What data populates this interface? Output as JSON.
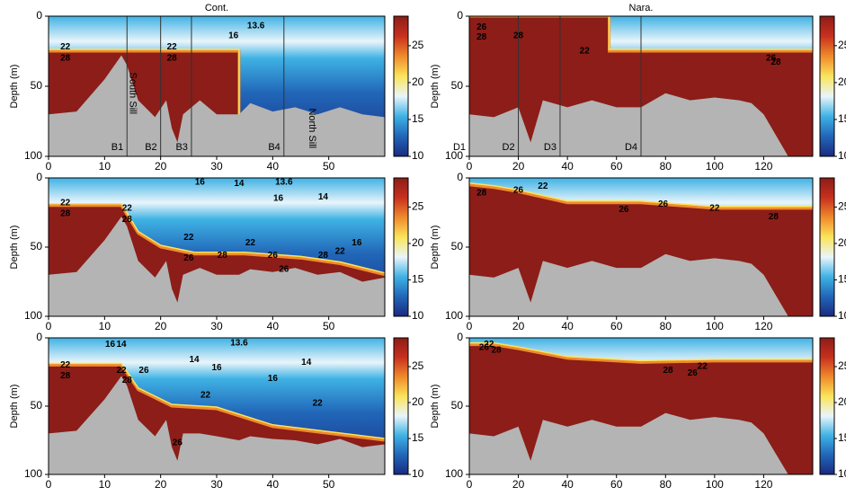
{
  "chart_data": [
    {
      "type": "heatmap",
      "title": "Cont.",
      "ylabel": "Depth (m)",
      "xlim": [
        0,
        60
      ],
      "xticks": [
        0,
        10,
        20,
        30,
        40,
        50
      ],
      "ylim": [
        0,
        100
      ],
      "y_inverted": true,
      "yticks": [
        0,
        50,
        100
      ],
      "colorbar": {
        "lim": [
          10,
          29
        ],
        "ticks": [
          10,
          15,
          20,
          25
        ]
      },
      "colormap": [
        "#1a2a80",
        "#2166b8",
        "#3fb2e4",
        "#e9f5fb",
        "#fbe45a",
        "#f08a2c",
        "#c8301e",
        "#8c1d18"
      ],
      "isotherm_x": [
        0,
        34,
        34,
        60
      ],
      "isotherm_depth": [
        25,
        25,
        100,
        100
      ],
      "seafloor_x": [
        0,
        5,
        10,
        13,
        14,
        16,
        19,
        21,
        22,
        23,
        24,
        27,
        30,
        34,
        36,
        40,
        44,
        48,
        52,
        56,
        60
      ],
      "seafloor_depth": [
        70,
        68,
        45,
        28,
        35,
        60,
        72,
        60,
        80,
        90,
        70,
        60,
        70,
        70,
        62,
        68,
        65,
        70,
        65,
        70,
        72
      ],
      "stations": [
        {
          "label": "B1",
          "x": 14
        },
        {
          "label": "B2",
          "x": 20
        },
        {
          "label": "B3",
          "x": 25.5
        },
        {
          "label": "B4",
          "x": 42
        }
      ],
      "features": [
        {
          "text": "South Sill",
          "x": 15,
          "y": 55
        },
        {
          "text": "North Sill",
          "x": 47,
          "y": 80
        }
      ],
      "contour_labels": [
        {
          "text": "22",
          "x": 3,
          "y": 22
        },
        {
          "text": "28",
          "x": 3,
          "y": 30
        },
        {
          "text": "22",
          "x": 22,
          "y": 22
        },
        {
          "text": "28",
          "x": 22,
          "y": 30
        },
        {
          "text": "16",
          "x": 33,
          "y": 14
        },
        {
          "text": "13.6",
          "x": 37,
          "y": 7
        }
      ]
    },
    {
      "type": "heatmap",
      "title": "Nara.",
      "ylabel": "Depth (m)",
      "xlim": [
        0,
        140
      ],
      "xticks": [
        0,
        20,
        40,
        60,
        80,
        100,
        120
      ],
      "ylim": [
        0,
        100
      ],
      "y_inverted": true,
      "yticks": [
        0,
        50,
        100
      ],
      "colorbar": {
        "lim": [
          10,
          29
        ],
        "ticks": [
          10,
          15,
          20,
          25
        ]
      },
      "colormap": [
        "#1a2a80",
        "#2166b8",
        "#3fb2e4",
        "#e9f5fb",
        "#fbe45a",
        "#f08a2c",
        "#c8301e",
        "#8c1d18"
      ],
      "isotherm_x": [
        0,
        57,
        57,
        140
      ],
      "isotherm_depth": [
        0,
        0,
        25,
        25
      ],
      "seafloor_x": [
        0,
        10,
        20,
        25,
        30,
        40,
        50,
        60,
        70,
        80,
        90,
        100,
        110,
        115,
        120,
        125,
        130,
        140
      ],
      "seafloor_depth": [
        70,
        72,
        65,
        90,
        60,
        65,
        60,
        65,
        65,
        55,
        60,
        58,
        60,
        62,
        70,
        85,
        100,
        100
      ],
      "stations": [
        {
          "label": "D1",
          "x": 0
        },
        {
          "label": "D2",
          "x": 20
        },
        {
          "label": "D3",
          "x": 37
        },
        {
          "label": "D4",
          "x": 70
        }
      ],
      "features": [],
      "contour_labels": [
        {
          "text": "26",
          "x": 5,
          "y": 8
        },
        {
          "text": "28",
          "x": 5,
          "y": 15
        },
        {
          "text": "28",
          "x": 20,
          "y": 14
        },
        {
          "text": "22",
          "x": 47,
          "y": 25
        },
        {
          "text": "26",
          "x": 123,
          "y": 30
        },
        {
          "text": "28",
          "x": 125,
          "y": 33
        }
      ]
    },
    {
      "type": "heatmap",
      "ylabel": "Depth (m)",
      "xlim": [
        0,
        60
      ],
      "xticks": [
        0,
        10,
        20,
        30,
        40,
        50
      ],
      "ylim": [
        0,
        100
      ],
      "y_inverted": true,
      "yticks": [
        0,
        50,
        100
      ],
      "colorbar": {
        "lim": [
          10,
          29
        ],
        "ticks": [
          10,
          15,
          20,
          25
        ]
      },
      "colormap": [
        "#1a2a80",
        "#2166b8",
        "#3fb2e4",
        "#e9f5fb",
        "#fbe45a",
        "#f08a2c",
        "#c8301e",
        "#8c1d18"
      ],
      "isotherm_x": [
        0,
        13,
        16,
        20,
        26,
        35,
        45,
        52,
        60
      ],
      "isotherm_depth": [
        20,
        20,
        40,
        50,
        55,
        55,
        58,
        62,
        70
      ],
      "seafloor_x": [
        0,
        5,
        10,
        13,
        14,
        16,
        19,
        21,
        22,
        23,
        24,
        27,
        30,
        34,
        36,
        40,
        44,
        48,
        52,
        56,
        60
      ],
      "seafloor_depth": [
        70,
        68,
        45,
        28,
        35,
        60,
        72,
        60,
        80,
        90,
        70,
        65,
        70,
        70,
        66,
        68,
        65,
        70,
        68,
        75,
        72
      ],
      "stations": [],
      "features": [],
      "contour_labels": [
        {
          "text": "22",
          "x": 3,
          "y": 18
        },
        {
          "text": "28",
          "x": 3,
          "y": 26
        },
        {
          "text": "22",
          "x": 14,
          "y": 22
        },
        {
          "text": "28",
          "x": 14,
          "y": 30
        },
        {
          "text": "16",
          "x": 27,
          "y": 3
        },
        {
          "text": "14",
          "x": 34,
          "y": 4
        },
        {
          "text": "13.6",
          "x": 42,
          "y": 3
        },
        {
          "text": "16",
          "x": 41,
          "y": 15
        },
        {
          "text": "14",
          "x": 49,
          "y": 14
        },
        {
          "text": "22",
          "x": 25,
          "y": 43
        },
        {
          "text": "22",
          "x": 36,
          "y": 47
        },
        {
          "text": "26",
          "x": 25,
          "y": 58
        },
        {
          "text": "28",
          "x": 31,
          "y": 56
        },
        {
          "text": "26",
          "x": 40,
          "y": 56
        },
        {
          "text": "28",
          "x": 49,
          "y": 56
        },
        {
          "text": "22",
          "x": 52,
          "y": 53
        },
        {
          "text": "16",
          "x": 55,
          "y": 47
        },
        {
          "text": "26",
          "x": 42,
          "y": 66
        }
      ]
    },
    {
      "type": "heatmap",
      "ylabel": "Depth (m)",
      "xlim": [
        0,
        140
      ],
      "xticks": [
        0,
        20,
        40,
        60,
        80,
        100,
        120
      ],
      "ylim": [
        0,
        100
      ],
      "y_inverted": true,
      "yticks": [
        0,
        50,
        100
      ],
      "colorbar": {
        "lim": [
          10,
          29
        ],
        "ticks": [
          10,
          15,
          20,
          25
        ]
      },
      "colormap": [
        "#1a2a80",
        "#2166b8",
        "#3fb2e4",
        "#e9f5fb",
        "#fbe45a",
        "#f08a2c",
        "#c8301e",
        "#8c1d18"
      ],
      "isotherm_x": [
        0,
        10,
        20,
        40,
        70,
        100,
        140
      ],
      "isotherm_depth": [
        5,
        7,
        10,
        18,
        18,
        22,
        22
      ],
      "seafloor_x": [
        0,
        10,
        20,
        25,
        30,
        40,
        50,
        60,
        70,
        80,
        90,
        100,
        110,
        115,
        120,
        125,
        130,
        140
      ],
      "seafloor_depth": [
        70,
        72,
        65,
        90,
        60,
        65,
        60,
        65,
        65,
        55,
        60,
        58,
        60,
        62,
        70,
        85,
        100,
        100
      ],
      "stations": [],
      "features": [],
      "contour_labels": [
        {
          "text": "28",
          "x": 5,
          "y": 11
        },
        {
          "text": "26",
          "x": 20,
          "y": 9
        },
        {
          "text": "22",
          "x": 30,
          "y": 6
        },
        {
          "text": "26",
          "x": 63,
          "y": 23
        },
        {
          "text": "26",
          "x": 79,
          "y": 19
        },
        {
          "text": "22",
          "x": 100,
          "y": 22
        },
        {
          "text": "28",
          "x": 124,
          "y": 28
        }
      ]
    },
    {
      "type": "heatmap",
      "ylabel": "Depth (m)",
      "xlim": [
        0,
        60
      ],
      "xticks": [
        0,
        10,
        20,
        30,
        40,
        50
      ],
      "ylim": [
        0,
        100
      ],
      "y_inverted": true,
      "yticks": [
        0,
        50,
        100
      ],
      "colorbar": {
        "lim": [
          10,
          29
        ],
        "ticks": [
          10,
          15,
          20,
          25
        ]
      },
      "colormap": [
        "#1a2a80",
        "#2166b8",
        "#3fb2e4",
        "#e9f5fb",
        "#fbe45a",
        "#f08a2c",
        "#c8301e",
        "#8c1d18"
      ],
      "isotherm_x": [
        0,
        13,
        16,
        22,
        30,
        40,
        50,
        60
      ],
      "isotherm_depth": [
        20,
        20,
        38,
        50,
        52,
        65,
        70,
        75
      ],
      "seafloor_x": [
        0,
        5,
        10,
        13,
        14,
        16,
        19,
        21,
        22,
        23,
        24,
        27,
        30,
        34,
        36,
        40,
        44,
        48,
        52,
        56,
        60
      ],
      "seafloor_depth": [
        70,
        68,
        45,
        28,
        35,
        60,
        72,
        60,
        80,
        90,
        70,
        70,
        72,
        75,
        72,
        74,
        75,
        78,
        74,
        80,
        78
      ],
      "stations": [],
      "features": [],
      "contour_labels": [
        {
          "text": "16",
          "x": 11,
          "y": 5
        },
        {
          "text": "14",
          "x": 13,
          "y": 5
        },
        {
          "text": "13.6",
          "x": 34,
          "y": 4
        },
        {
          "text": "14",
          "x": 26,
          "y": 16
        },
        {
          "text": "16",
          "x": 30,
          "y": 22
        },
        {
          "text": "14",
          "x": 46,
          "y": 18
        },
        {
          "text": "16",
          "x": 40,
          "y": 30
        },
        {
          "text": "22",
          "x": 3,
          "y": 20
        },
        {
          "text": "28",
          "x": 3,
          "y": 28
        },
        {
          "text": "22",
          "x": 13,
          "y": 24
        },
        {
          "text": "28",
          "x": 14,
          "y": 31
        },
        {
          "text": "26",
          "x": 17,
          "y": 24
        },
        {
          "text": "22",
          "x": 28,
          "y": 42
        },
        {
          "text": "22",
          "x": 48,
          "y": 48
        },
        {
          "text": "26",
          "x": 23,
          "y": 77
        }
      ]
    },
    {
      "type": "heatmap",
      "ylabel": "Depth (m)",
      "xlim": [
        0,
        140
      ],
      "xticks": [
        0,
        20,
        40,
        60,
        80,
        100,
        120
      ],
      "ylim": [
        0,
        100
      ],
      "y_inverted": true,
      "yticks": [
        0,
        50,
        100
      ],
      "colorbar": {
        "lim": [
          10,
          29
        ],
        "ticks": [
          10,
          15,
          20,
          25
        ]
      },
      "colormap": [
        "#1a2a80",
        "#2166b8",
        "#3fb2e4",
        "#e9f5fb",
        "#fbe45a",
        "#f08a2c",
        "#c8301e",
        "#8c1d18"
      ],
      "isotherm_x": [
        0,
        10,
        20,
        40,
        70,
        100,
        140
      ],
      "isotherm_depth": [
        5,
        5,
        8,
        15,
        18,
        17,
        17
      ],
      "seafloor_x": [
        0,
        10,
        20,
        25,
        30,
        40,
        50,
        60,
        70,
        80,
        90,
        100,
        110,
        115,
        120,
        125,
        130,
        140
      ],
      "seafloor_depth": [
        70,
        72,
        65,
        90,
        60,
        65,
        60,
        65,
        65,
        55,
        60,
        58,
        60,
        62,
        70,
        85,
        100,
        100
      ],
      "stations": [],
      "features": [],
      "contour_labels": [
        {
          "text": "22",
          "x": 8,
          "y": 5
        },
        {
          "text": "26",
          "x": 6,
          "y": 7
        },
        {
          "text": "28",
          "x": 11,
          "y": 9
        },
        {
          "text": "28",
          "x": 81,
          "y": 24
        },
        {
          "text": "22",
          "x": 95,
          "y": 21
        },
        {
          "text": "26",
          "x": 91,
          "y": 26
        }
      ]
    }
  ]
}
